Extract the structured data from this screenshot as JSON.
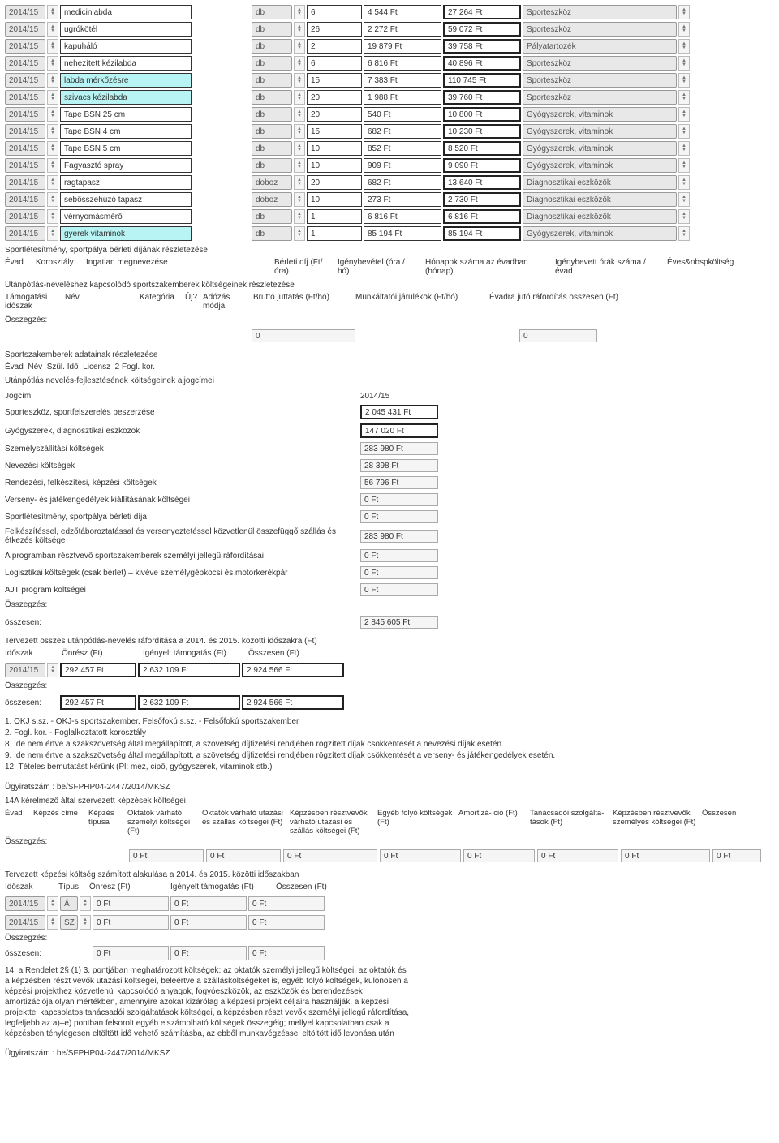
{
  "season": "2014/15",
  "items": [
    {
      "name": "medicinlabda",
      "hl": false,
      "unit": "db",
      "qty": "6",
      "price": "4 544 Ft",
      "total": "27 264  Ft",
      "cat": "Sporteszköz"
    },
    {
      "name": "ugrókötél",
      "hl": false,
      "unit": "db",
      "qty": "26",
      "price": "2 272 Ft",
      "total": "59 072  Ft",
      "cat": "Sporteszköz"
    },
    {
      "name": "kapuháló",
      "hl": false,
      "unit": "db",
      "qty": "2",
      "price": "19 879 Ft",
      "total": "39 758  Ft",
      "cat": "Pályatartozék"
    },
    {
      "name": "nehezített kézilabda",
      "hl": false,
      "unit": "db",
      "qty": "6",
      "price": "6 816 Ft",
      "total": "40 896  Ft",
      "cat": "Sporteszköz"
    },
    {
      "name": "labda mérkőzésre",
      "hl": true,
      "unit": "db",
      "qty": "15",
      "price": "7 383 Ft",
      "total": "110 745  Ft",
      "cat": "Sporteszköz"
    },
    {
      "name": "szivacs kézilabda",
      "hl": true,
      "unit": "db",
      "qty": "20",
      "price": "1 988 Ft",
      "total": "39 760  Ft",
      "cat": "Sporteszköz"
    },
    {
      "name": "Tape BSN 25 cm",
      "hl": false,
      "unit": "db",
      "qty": "20",
      "price": "540 Ft",
      "total": "10 800  Ft",
      "cat": "Gyógyszerek, vitaminok"
    },
    {
      "name": "Tape BSN 4 cm",
      "hl": false,
      "unit": "db",
      "qty": "15",
      "price": "682 Ft",
      "total": "10 230  Ft",
      "cat": "Gyógyszerek, vitaminok"
    },
    {
      "name": "Tape BSN 5 cm",
      "hl": false,
      "unit": "db",
      "qty": "10",
      "price": "852 Ft",
      "total": "8 520  Ft",
      "cat": "Gyógyszerek, vitaminok"
    },
    {
      "name": "Fagyasztó spray",
      "hl": false,
      "unit": "db",
      "qty": "10",
      "price": "909 Ft",
      "total": "9 090  Ft",
      "cat": "Gyógyszerek, vitaminok"
    },
    {
      "name": "ragtapasz",
      "hl": false,
      "unit": "doboz",
      "qty": "20",
      "price": "682 Ft",
      "total": "13 640  Ft",
      "cat": "Diagnosztikai eszközök"
    },
    {
      "name": "sebösszehúzó tapasz",
      "hl": false,
      "unit": "doboz",
      "qty": "10",
      "price": "273 Ft",
      "total": "2 730  Ft",
      "cat": "Diagnosztikai eszközök"
    },
    {
      "name": "vérnyomásmérő",
      "hl": false,
      "unit": "db",
      "qty": "1",
      "price": "6 816 Ft",
      "total": "6 816  Ft",
      "cat": "Diagnosztikai eszközök"
    },
    {
      "name": "gyerek vitaminok",
      "hl": true,
      "unit": "db",
      "qty": "1",
      "price": "85 194 Ft",
      "total": "85 194  Ft",
      "cat": "Gyógyszerek, vitaminok"
    }
  ],
  "sec1_title": "Sportlétesítmény, sportpálya bérleti díjának részletezése",
  "sec1_hdr": [
    "Évad",
    "Korosztály",
    "Ingatlan megnevezése",
    "Bérleti díj (Ft/óra)",
    "Igénybevétel (óra / hó)",
    "Hónapok száma az évadban (hónap)",
    "Igénybevett órák száma / évad",
    "Éves&nbspköltség"
  ],
  "sec2_title": "Utánpótlás-neveléshez kapcsolódó sportszakemberek költségeinek részletezése",
  "sec2_hdr": [
    "Támogatási időszak",
    "Név",
    "Kategória",
    "Új?",
    "Adózás módja",
    "Bruttó juttatás (Ft/hó)",
    "Munkáltatói járulékok (Ft/hó)",
    "Évadra jutó ráfordítás összesen (Ft)"
  ],
  "osszegzes": "Összegzés:",
  "zero": "0",
  "sec3_title": "Sportszakemberek adatainak részletezése",
  "sec3_hdr": "Évad  Név  Szül. Idő  Licensz  2 Fogl. kor.",
  "sec4_title": "Utánpótlás nevelés-fejlesztésének költségeinek aljogcímei",
  "jogcim_label": "Jogcím",
  "jogcim_year": "2014/15",
  "jogcim": [
    {
      "label": "Sporteszköz, sportfelszerelés beszerzése",
      "val": "2 045 431  Ft",
      "dbl": true
    },
    {
      "label": "Gyógyszerek, diagnosztikai eszközök",
      "val": "147 020  Ft",
      "dbl": true
    },
    {
      "label": "Személyszállítási költségek",
      "val": "283 980 Ft",
      "dbl": false
    },
    {
      "label": "Nevezési költségek",
      "val": "28 398 Ft",
      "dbl": false
    },
    {
      "label": "Rendezési, felkészítési, képzési költségek",
      "val": "56 796 Ft",
      "dbl": false
    },
    {
      "label": "Verseny- és játékengedélyek kiállításának költségei",
      "val": "0 Ft",
      "dbl": false
    },
    {
      "label": "Sportlétesítmény, sportpálya bérleti díja",
      "val": "0  Ft",
      "dbl": false
    },
    {
      "label": "Felkészítéssel, edzőtáboroztatással és versenyeztetéssel közvetlenül összefüggő szállás és étkezés költsége",
      "val": "283 980 Ft",
      "dbl": false
    },
    {
      "label": "A programban résztvevő sportszakemberek személyi jellegű ráfordításai",
      "val": "0  Ft",
      "dbl": false
    },
    {
      "label": "Logisztikai költségek (csak bérlet) – kivéve személygépkocsi és motorkerékpár",
      "val": "0 Ft",
      "dbl": false
    },
    {
      "label": "AJT program költségei",
      "val": "0 Ft",
      "dbl": false
    }
  ],
  "osszesen": "összesen:",
  "jogcim_total": "2 845 605 Ft",
  "terv_title": "Tervezett összes utánpótlás-nevelés ráfordítása a 2014. és 2015. közötti időszakra (Ft)",
  "terv_hdr": [
    "Időszak",
    "Önrész (Ft)",
    "Igényelt támogatás (Ft)",
    "Összesen (Ft)"
  ],
  "terv_row": {
    "season": "2014/15",
    "on": "292 457 Ft",
    "ig": "2 632 109 Ft",
    "sum": "2 924 566 Ft"
  },
  "terv_total": {
    "on": "292 457 Ft",
    "ig": "2 632 109 Ft",
    "sum": "2 924 566 Ft"
  },
  "notes": [
    "1. OKJ s.sz. - OKJ-s sportszakember, Felsőfokú s.sz. - Felsőfokú sportszakember",
    "2. Fogl. kor. - Foglalkoztatott korosztály",
    "8. Ide nem értve a szakszövetség által megállapított, a szövetség díjfizetési rendjében rögzített díjak csökkentését a nevezési díjak esetén.",
    "9. Ide nem értve a szakszövetség által megállapított, a szövetség díjfizetési rendjében rögzített díjak csökkentését a verseny- és játékengedélyek esetén.",
    "12. Tételes bemutatást kérünk (Pl: mez, cipő, gyógyszerek, vitaminok stb.)"
  ],
  "ugyirat": "Ügyiratszám : be/SFPHP04-2447/2014/MKSZ",
  "sec14a_title": "14A kérelmező által szervezett képzések költségei",
  "kepzes_hdr": [
    "Évad",
    "Képzés címe",
    "Képzés típusa",
    "Oktatók várható személyi költségei (Ft)",
    "Oktatók várható utazási és szállás költségei (Ft)",
    "Képzésben résztvevők várható utazási és szállás költségei (Ft)",
    "Egyéb folyó költségek (Ft)",
    "Amortizá- ció (Ft)",
    "Tanácsadói szolgálta-tások (Ft)",
    "Képzésben résztvevők személyes költségei (Ft)",
    "Összesen"
  ],
  "kepzes_zero": "0 Ft",
  "tervkepzes_title": "Tervezett képzési költség számított alakulása a 2014. és 2015. közötti időszakban",
  "tervkepzes_hdr": [
    "Időszak",
    "Típus",
    "Önrész (Ft)",
    "Igényelt támogatás (Ft)",
    "Összesen (Ft)"
  ],
  "tervkepzes_rows": [
    {
      "season": "2014/15",
      "tip": "Á",
      "on": "0 Ft",
      "ig": "0 Ft",
      "sum": "0 Ft"
    },
    {
      "season": "2014/15",
      "tip": "SZ",
      "on": "0 Ft",
      "ig": "0 Ft",
      "sum": "0 Ft"
    }
  ],
  "tervkepzes_total": {
    "on": "0 Ft",
    "ig": "0 Ft",
    "sum": "0 Ft"
  },
  "note14": "14. a Rendelet 2§ (1) 3. pontjában meghatározott költségek: az oktatók személyi jellegű költségei, az oktatók és a képzésben részt vevők utazási költségei, beleértve a szállásköltségeket is, egyéb folyó költségek, különösen a képzési projekthez közvetlenül kapcsolódó anyagok, fogyóeszközök, az eszközök és berendezések amortizációja olyan mértékben, amennyire azokat kizárólag a képzési projekt céljaira használják, a képzési projekttel kapcsolatos tanácsadói szolgáltatások költségei, a képzésben részt vevők személyi jellegű ráfordítása, legfeljebb az a)–e) pontban felsorolt egyéb elszámolható költségek összegéig; mellyel kapcsolatban csak a képzésben ténylegesen eltöltött idő vehető számításba, az ebből munkavégzéssel eltöltött idő levonása után"
}
